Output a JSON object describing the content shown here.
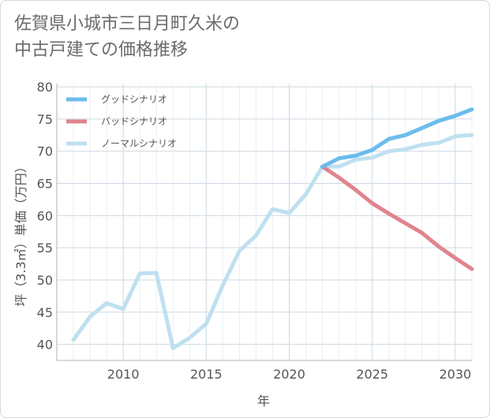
{
  "title": {
    "line1": "佐賀県小城市三日月町久米の",
    "line2": "中古戸建ての価格推移"
  },
  "chart_data": {
    "type": "line",
    "xlabel": "年",
    "ylabel": "坪（3.3㎡）単価（万円）",
    "xlim": [
      2006,
      2031
    ],
    "ylim": [
      37.5,
      80.5
    ],
    "xticks": [
      2010,
      2015,
      2020,
      2025,
      2030
    ],
    "yticks": [
      40,
      45,
      50,
      55,
      60,
      65,
      70,
      75,
      80
    ],
    "grid": true,
    "legend_position": "top-left",
    "series": [
      {
        "name": "グッドシナリオ",
        "color": "#6bbcec",
        "x": [
          2022,
          2023,
          2024,
          2025,
          2026,
          2027,
          2028,
          2029,
          2030,
          2031
        ],
        "y": [
          67.6,
          68.9,
          69.3,
          70.2,
          71.9,
          72.5,
          73.6,
          74.7,
          75.5,
          76.5
        ]
      },
      {
        "name": "バッドシナリオ",
        "color": "#e0848c",
        "x": [
          2022,
          2023,
          2024,
          2025,
          2026,
          2027,
          2028,
          2029,
          2030,
          2031
        ],
        "y": [
          67.6,
          65.9,
          64.0,
          61.9,
          60.3,
          58.8,
          57.3,
          55.2,
          53.4,
          51.7
        ]
      },
      {
        "name": "ノーマルシナリオ",
        "color": "#bfe0ef",
        "x": [
          2007,
          2008,
          2009,
          2010,
          2011,
          2012,
          2013,
          2014,
          2015,
          2016,
          2017,
          2018,
          2019,
          2020,
          2021,
          2022,
          2023,
          2024,
          2025,
          2026,
          2027,
          2028,
          2029,
          2030,
          2031
        ],
        "y": [
          40.7,
          44.3,
          46.4,
          45.5,
          51.0,
          51.1,
          39.4,
          41.0,
          43.2,
          49.2,
          54.5,
          56.9,
          61.0,
          60.4,
          63.3,
          67.6,
          67.6,
          68.7,
          69.0,
          70.0,
          70.3,
          71.0,
          71.3,
          72.3,
          72.5
        ]
      }
    ]
  }
}
